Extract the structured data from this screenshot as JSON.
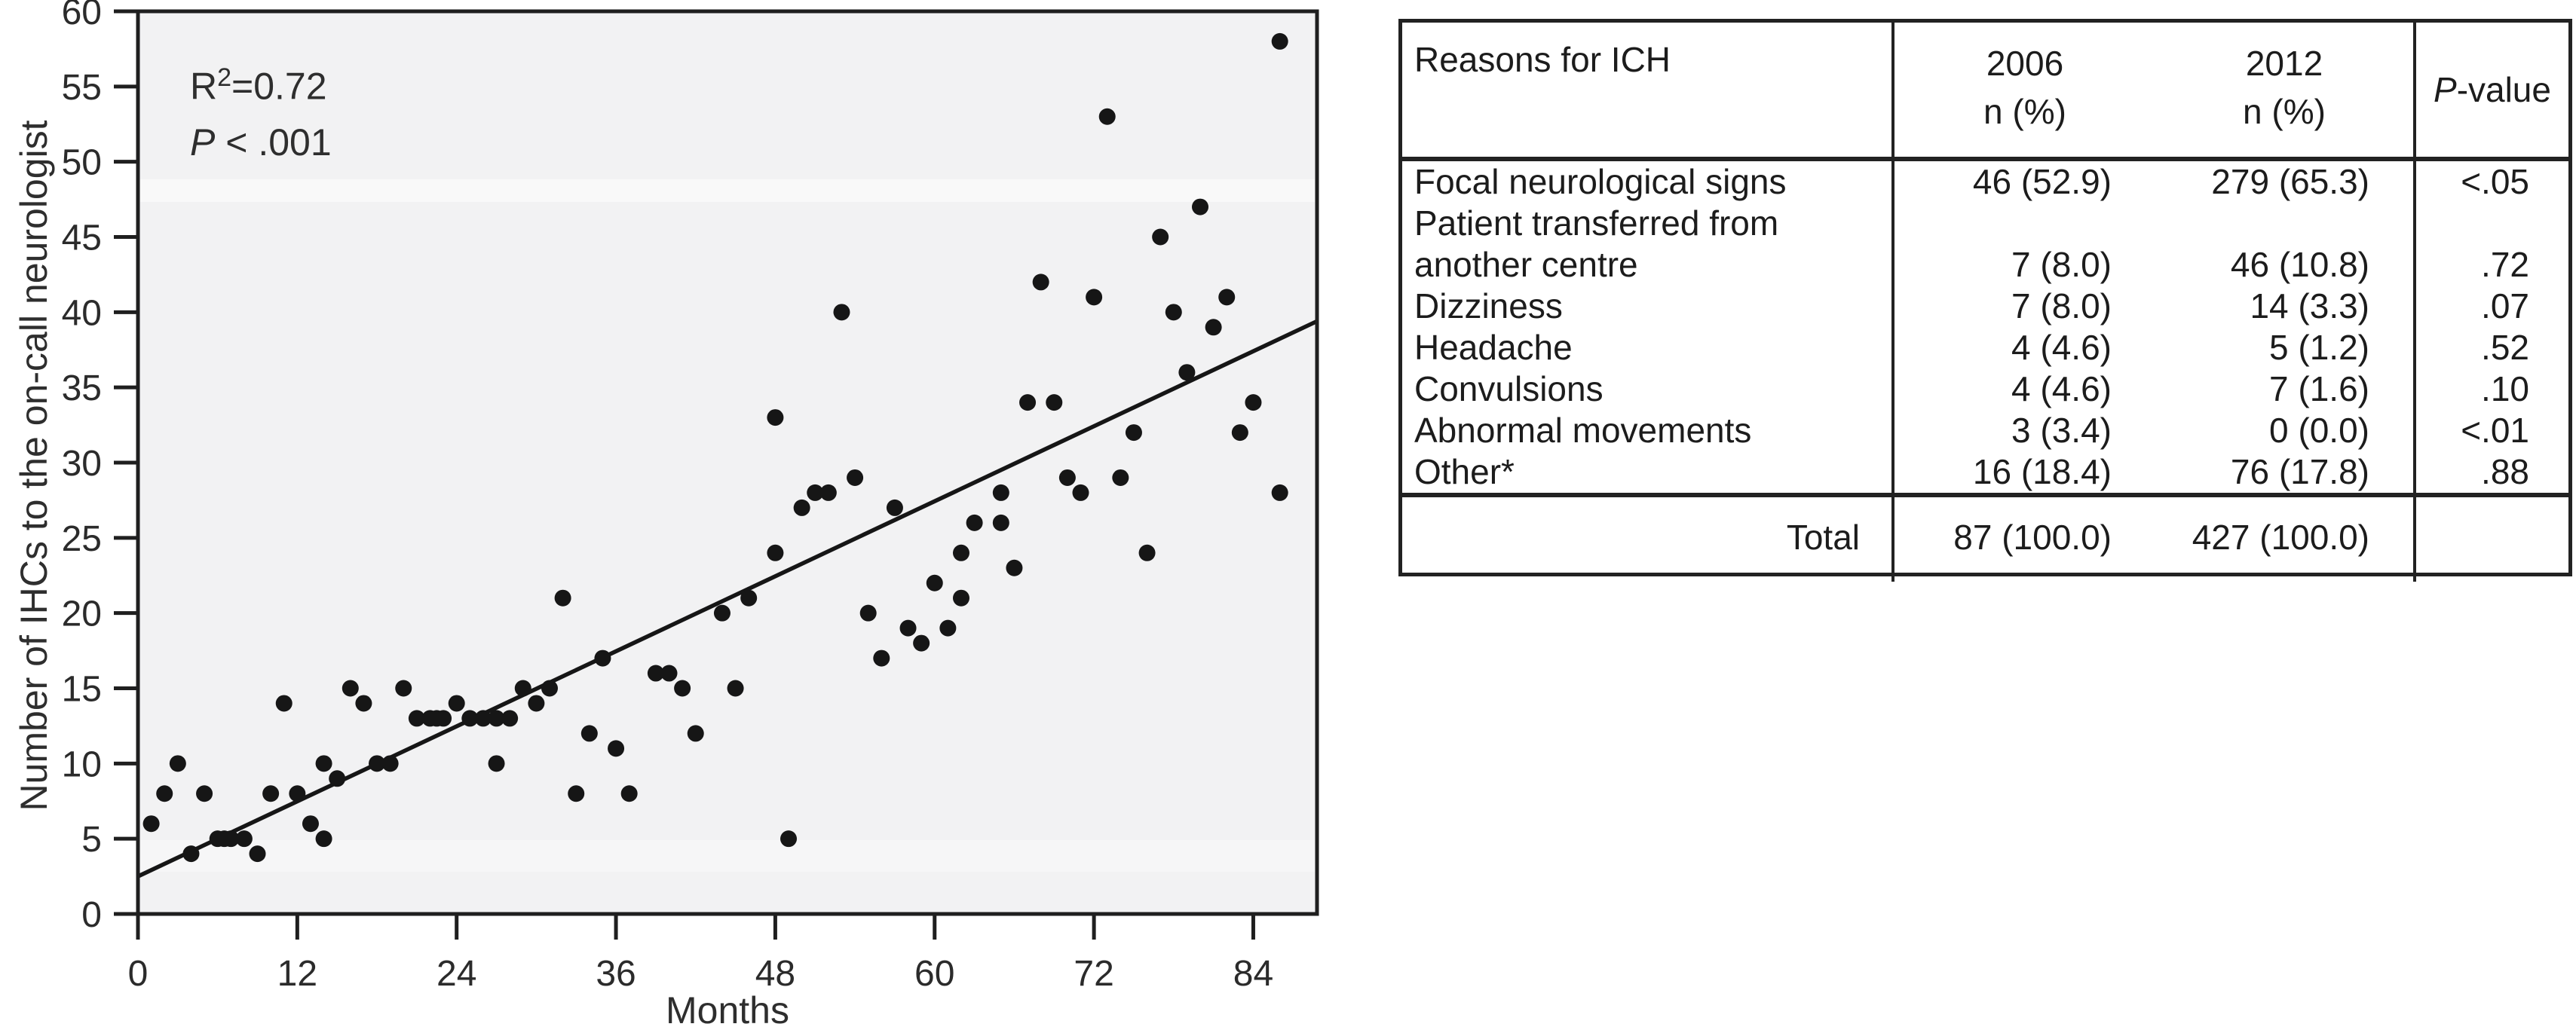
{
  "chart_data": {
    "type": "scatter",
    "title": "",
    "xlabel": "Months",
    "ylabel": "Number of IHCs to the on-call neurologist",
    "xlim": [
      0,
      88.8
    ],
    "ylim": [
      0,
      60
    ],
    "xticks": [
      0,
      12,
      24,
      36,
      48,
      60,
      72,
      84
    ],
    "yticks": [
      0,
      5,
      10,
      15,
      20,
      25,
      30,
      35,
      40,
      45,
      50,
      55,
      60
    ],
    "grid": false,
    "legend": null,
    "annotation": {
      "r2_base": "R",
      "r2_sup": "2",
      "r2_rest": "=0.72",
      "p_italic": "P",
      "p_rest": " < .001"
    },
    "trend_line": {
      "x1": 0,
      "y1": 2.5,
      "x2": 88.8,
      "y2": 39.4
    },
    "points": [
      [
        1,
        6
      ],
      [
        2,
        8
      ],
      [
        3,
        10
      ],
      [
        4,
        4
      ],
      [
        5,
        8
      ],
      [
        6,
        5
      ],
      [
        6.5,
        5
      ],
      [
        7,
        5
      ],
      [
        8,
        5
      ],
      [
        9,
        4
      ],
      [
        10,
        8
      ],
      [
        12,
        8
      ],
      [
        13,
        6
      ],
      [
        14,
        5
      ],
      [
        11,
        14
      ],
      [
        14,
        10
      ],
      [
        15,
        9
      ],
      [
        16,
        15
      ],
      [
        17,
        14
      ],
      [
        18,
        10
      ],
      [
        19,
        10
      ],
      [
        20,
        15
      ],
      [
        21,
        13
      ],
      [
        22,
        13
      ],
      [
        22.5,
        13
      ],
      [
        23,
        13
      ],
      [
        24,
        14
      ],
      [
        25,
        13
      ],
      [
        26,
        13
      ],
      [
        27,
        13
      ],
      [
        28,
        13
      ],
      [
        27,
        10
      ],
      [
        29,
        15
      ],
      [
        30,
        14
      ],
      [
        31,
        15
      ],
      [
        32,
        21
      ],
      [
        33,
        8
      ],
      [
        34,
        12
      ],
      [
        35,
        17
      ],
      [
        36,
        11
      ],
      [
        37,
        8
      ],
      [
        39,
        16
      ],
      [
        40,
        16
      ],
      [
        41,
        15
      ],
      [
        42,
        12
      ],
      [
        44,
        20
      ],
      [
        45,
        15
      ],
      [
        46,
        21
      ],
      [
        48,
        24
      ],
      [
        48,
        33
      ],
      [
        49,
        5
      ],
      [
        50,
        27
      ],
      [
        51,
        28
      ],
      [
        52,
        28
      ],
      [
        53,
        40
      ],
      [
        54,
        29
      ],
      [
        55,
        20
      ],
      [
        56,
        17
      ],
      [
        57,
        27
      ],
      [
        58,
        19
      ],
      [
        59,
        18
      ],
      [
        60,
        22
      ],
      [
        61,
        19
      ],
      [
        62,
        21
      ],
      [
        62,
        24
      ],
      [
        63,
        26
      ],
      [
        65,
        26
      ],
      [
        65,
        28
      ],
      [
        66,
        23
      ],
      [
        67,
        34
      ],
      [
        68,
        42
      ],
      [
        69,
        34
      ],
      [
        70,
        29
      ],
      [
        71,
        28
      ],
      [
        72,
        41
      ],
      [
        73,
        53
      ],
      [
        74,
        29
      ],
      [
        75,
        32
      ],
      [
        76,
        24
      ],
      [
        77,
        45
      ],
      [
        78,
        40
      ],
      [
        79,
        36
      ],
      [
        80,
        47
      ],
      [
        81,
        39
      ],
      [
        82,
        41
      ],
      [
        83,
        32
      ],
      [
        84,
        34
      ],
      [
        86,
        28
      ],
      [
        86,
        58
      ]
    ],
    "colors": {
      "point": "#161616",
      "trend": "#161616",
      "frame": "#1f1f1f",
      "plot_bg": "#f2f2f3",
      "tick_text": "#2b2b2b"
    }
  },
  "table": {
    "headers": {
      "col1": "Reasons for ICH",
      "col2_line1": "2006",
      "col2_line2": "n (%)",
      "col3_line1": "2012",
      "col3_line2": "n (%)",
      "col4_italic": "P",
      "col4_rest": "-value"
    },
    "rows": [
      {
        "label": "Focal neurological signs",
        "y2006": "46 (52.9)",
        "y2012": "279 (65.3)",
        "p": "<.05"
      },
      {
        "label": "Patient transferred from",
        "y2006": "",
        "y2012": "",
        "p": ""
      },
      {
        "label": "another centre",
        "y2006": "7 (8.0)",
        "y2012": "46 (10.8)",
        "p": ".72"
      },
      {
        "label": "Dizziness",
        "y2006": "7 (8.0)",
        "y2012": "14 (3.3)",
        "p": ".07"
      },
      {
        "label": "Headache",
        "y2006": "4 (4.6)",
        "y2012": "5 (1.2)",
        "p": ".52"
      },
      {
        "label": "Convulsions",
        "y2006": "4 (4.6)",
        "y2012": "7 (1.6)",
        "p": ".10"
      },
      {
        "label": "Abnormal movements",
        "y2006": "3 (3.4)",
        "y2012": "0 (0.0)",
        "p": "<.01"
      },
      {
        "label": "Other*",
        "y2006": "16 (18.4)",
        "y2012": "76 (17.8)",
        "p": ".88"
      }
    ],
    "total": {
      "label": "Total",
      "y2006": "87 (100.0)",
      "y2012": "427 (100.0)",
      "p": ""
    }
  }
}
